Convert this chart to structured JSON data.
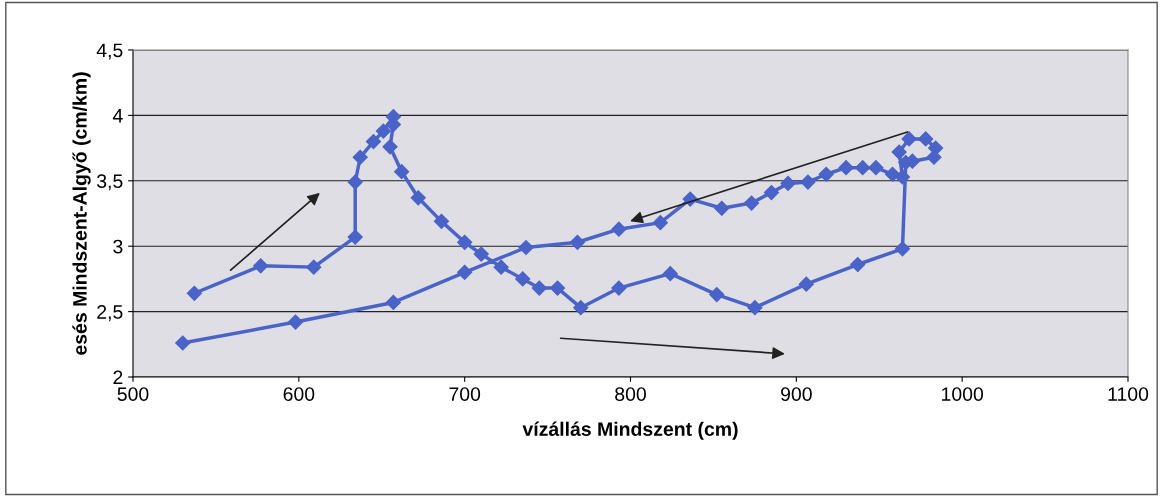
{
  "chart_data": {
    "type": "line",
    "xlabel": "vízállás Mindszent (cm)",
    "ylabel": "esés Mindszent-Algyő (cm/km)",
    "x": [
      537,
      577,
      609,
      634,
      634,
      637,
      645,
      651,
      657,
      657,
      655,
      662,
      672,
      686,
      700,
      710,
      722,
      735,
      745,
      756,
      770,
      793,
      824,
      852,
      875,
      906,
      937,
      964,
      966,
      970,
      983,
      984,
      978,
      968,
      962,
      964,
      958,
      948,
      940,
      930,
      918,
      907,
      895,
      885,
      873,
      855,
      836,
      818,
      793,
      768,
      737,
      700,
      657,
      598,
      530
    ],
    "series": [
      {
        "color": "#4a63c8",
        "values": [
          2.64,
          2.85,
          2.84,
          3.07,
          3.49,
          3.68,
          3.8,
          3.88,
          3.99,
          3.93,
          3.76,
          3.57,
          3.37,
          3.19,
          3.03,
          2.94,
          2.84,
          2.75,
          2.68,
          2.68,
          2.53,
          2.68,
          2.79,
          2.63,
          2.53,
          2.71,
          2.86,
          2.98,
          3.64,
          3.65,
          3.68,
          3.75,
          3.82,
          3.82,
          3.72,
          3.53,
          3.55,
          3.6,
          3.6,
          3.6,
          3.55,
          3.49,
          3.48,
          3.41,
          3.33,
          3.29,
          3.36,
          3.18,
          3.13,
          3.03,
          2.99,
          2.8,
          2.57,
          2.42,
          2.26
        ]
      }
    ],
    "xlim": [
      500,
      1100
    ],
    "xticks": [
      500,
      600,
      700,
      800,
      900,
      1000,
      1100
    ],
    "ylim": [
      2,
      4.5
    ],
    "yticks": [
      2,
      {
        "value": 2.5,
        "label": "2,5"
      },
      3,
      {
        "value": 3.5,
        "label": "3,5"
      },
      4,
      {
        "value": 4.5,
        "label": "4,5"
      }
    ],
    "grid": "y",
    "marker": "diamond",
    "line_style": "solid",
    "legend": false
  }
}
